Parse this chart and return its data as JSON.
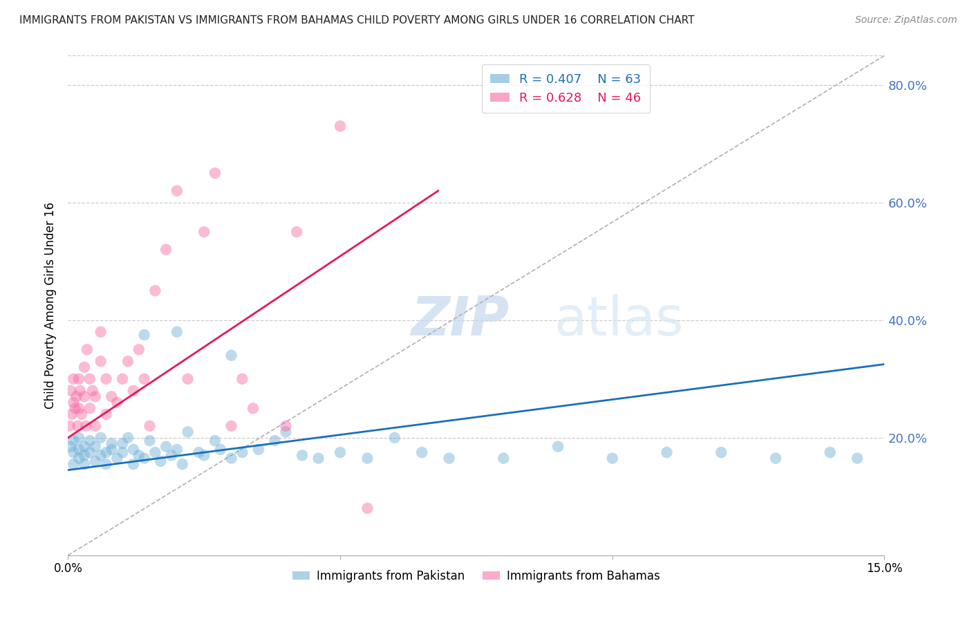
{
  "title": "IMMIGRANTS FROM PAKISTAN VS IMMIGRANTS FROM BAHAMAS CHILD POVERTY AMONG GIRLS UNDER 16 CORRELATION CHART",
  "source": "Source: ZipAtlas.com",
  "ylabel": "Child Poverty Among Girls Under 16",
  "x_min": 0.0,
  "x_max": 0.15,
  "y_min": 0.0,
  "y_max": 0.85,
  "y_ticks": [
    0.2,
    0.4,
    0.6,
    0.8
  ],
  "y_tick_labels": [
    "20.0%",
    "40.0%",
    "60.0%",
    "80.0%"
  ],
  "pakistan_color": "#6baed6",
  "bahamas_color": "#f768a1",
  "trend_pakistan_color": "#1a6fba",
  "trend_bahamas_color": "#e8165b",
  "diagonal_color": "#b0b0b0",
  "pakistan_R": 0.407,
  "pakistan_N": 63,
  "bahamas_R": 0.628,
  "bahamas_N": 46,
  "pakistan_scatter_x": [
    0.0005,
    0.001,
    0.001,
    0.001,
    0.002,
    0.002,
    0.002,
    0.003,
    0.003,
    0.003,
    0.004,
    0.004,
    0.005,
    0.005,
    0.006,
    0.006,
    0.007,
    0.007,
    0.008,
    0.008,
    0.009,
    0.01,
    0.01,
    0.011,
    0.012,
    0.012,
    0.013,
    0.014,
    0.015,
    0.016,
    0.017,
    0.018,
    0.019,
    0.02,
    0.021,
    0.022,
    0.024,
    0.025,
    0.027,
    0.028,
    0.03,
    0.032,
    0.035,
    0.038,
    0.04,
    0.043,
    0.046,
    0.05,
    0.055,
    0.06,
    0.065,
    0.07,
    0.08,
    0.09,
    0.1,
    0.11,
    0.12,
    0.13,
    0.14,
    0.145,
    0.014,
    0.02,
    0.03
  ],
  "pakistan_scatter_y": [
    0.185,
    0.175,
    0.195,
    0.155,
    0.18,
    0.165,
    0.2,
    0.17,
    0.185,
    0.155,
    0.195,
    0.175,
    0.185,
    0.16,
    0.17,
    0.2,
    0.175,
    0.155,
    0.18,
    0.19,
    0.165,
    0.19,
    0.175,
    0.2,
    0.18,
    0.155,
    0.17,
    0.165,
    0.195,
    0.175,
    0.16,
    0.185,
    0.17,
    0.18,
    0.155,
    0.21,
    0.175,
    0.17,
    0.195,
    0.18,
    0.165,
    0.175,
    0.18,
    0.195,
    0.21,
    0.17,
    0.165,
    0.175,
    0.165,
    0.2,
    0.175,
    0.165,
    0.165,
    0.185,
    0.165,
    0.175,
    0.175,
    0.165,
    0.175,
    0.165,
    0.375,
    0.38,
    0.34
  ],
  "bahamas_scatter_x": [
    0.0003,
    0.0005,
    0.0007,
    0.001,
    0.001,
    0.0013,
    0.0015,
    0.0018,
    0.002,
    0.002,
    0.0022,
    0.0025,
    0.003,
    0.003,
    0.0033,
    0.0035,
    0.004,
    0.004,
    0.0045,
    0.005,
    0.005,
    0.006,
    0.006,
    0.007,
    0.007,
    0.008,
    0.009,
    0.01,
    0.011,
    0.012,
    0.013,
    0.014,
    0.015,
    0.016,
    0.018,
    0.02,
    0.022,
    0.025,
    0.027,
    0.03,
    0.032,
    0.034,
    0.04,
    0.042,
    0.05,
    0.055
  ],
  "bahamas_scatter_y": [
    0.22,
    0.28,
    0.24,
    0.26,
    0.3,
    0.25,
    0.27,
    0.22,
    0.25,
    0.3,
    0.28,
    0.24,
    0.32,
    0.27,
    0.22,
    0.35,
    0.3,
    0.25,
    0.28,
    0.27,
    0.22,
    0.38,
    0.33,
    0.3,
    0.24,
    0.27,
    0.26,
    0.3,
    0.33,
    0.28,
    0.35,
    0.3,
    0.22,
    0.45,
    0.52,
    0.62,
    0.3,
    0.55,
    0.65,
    0.22,
    0.3,
    0.25,
    0.22,
    0.55,
    0.73,
    0.08
  ],
  "bahamas_trend_x0": 0.0,
  "bahamas_trend_x1": 0.068,
  "bahamas_trend_y0": 0.2,
  "bahamas_trend_y1": 0.62,
  "pakistan_trend_x0": 0.0,
  "pakistan_trend_x1": 0.15,
  "pakistan_trend_y0": 0.145,
  "pakistan_trend_y1": 0.325,
  "watermark_zip": "ZIP",
  "watermark_atlas": "atlas"
}
